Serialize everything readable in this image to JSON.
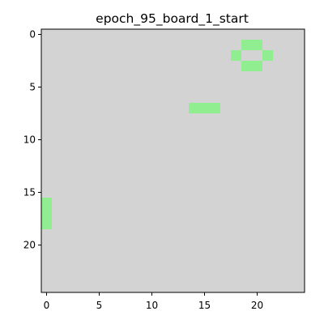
{
  "chart_data": {
    "type": "heatmap",
    "title": "epoch_95_board_1_start",
    "grid_size": [
      25,
      25
    ],
    "background_color": "#d3d3d3",
    "cell_color": "#90ee90",
    "x_ticks": [
      0,
      5,
      10,
      15,
      20
    ],
    "y_ticks": [
      0,
      5,
      10,
      15,
      20
    ],
    "x_tick_labels": [
      "0",
      "5",
      "10",
      "15",
      "20"
    ],
    "y_tick_labels": [
      "0",
      "5",
      "10",
      "15",
      "20"
    ],
    "xlim": [
      -0.5,
      24.5
    ],
    "ylim": [
      24.5,
      -0.5
    ],
    "alive_cells": [
      {
        "row": 1,
        "col": 19
      },
      {
        "row": 1,
        "col": 20
      },
      {
        "row": 2,
        "col": 18
      },
      {
        "row": 2,
        "col": 21
      },
      {
        "row": 3,
        "col": 19
      },
      {
        "row": 3,
        "col": 20
      },
      {
        "row": 7,
        "col": 14
      },
      {
        "row": 7,
        "col": 15
      },
      {
        "row": 7,
        "col": 16
      },
      {
        "row": 16,
        "col": 0
      },
      {
        "row": 17,
        "col": 0
      },
      {
        "row": 18,
        "col": 0
      }
    ]
  }
}
